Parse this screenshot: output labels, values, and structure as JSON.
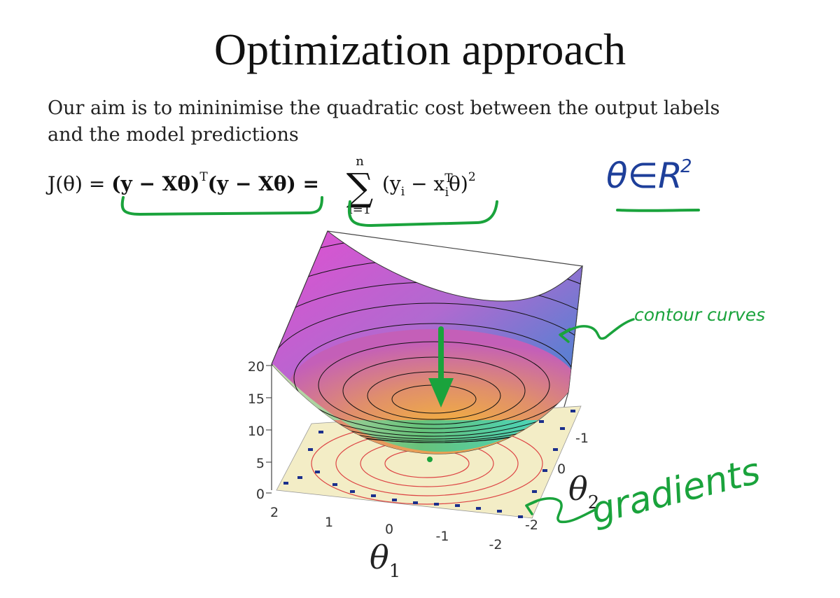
{
  "slide": {
    "title": "Optimization approach",
    "body_lines": [
      "Our aim is to mininimise the quadratic cost between the output labels",
      "and the model predictions"
    ],
    "equation": {
      "lhs": "J(θ) = ",
      "term1": "(y − Xθ)",
      "sup_T": "T",
      "term2": "(y − Xθ) = ",
      "sum_upper": "n",
      "sum_symbol": "∑",
      "sum_lower": "i=1",
      "summand_open": "(y",
      "sub_i": "i",
      "summand_mid": " − x",
      "sup_T2": "T",
      "sub_i2": "i",
      "summand_close": "θ)",
      "sup_2": "2"
    }
  },
  "annotations": {
    "theta_in_R2": "θ∈R",
    "theta_in_R2_sup": "2",
    "contour_curves": "contour curves",
    "gradients": "gradients",
    "accent_color": "#1aa33c",
    "ink_color": "#1e3f9a"
  },
  "plot": {
    "z_ticks": [
      "20",
      "15",
      "10",
      "5",
      "0"
    ],
    "theta1_ticks": [
      "2",
      "1",
      "0",
      "-1",
      "-2"
    ],
    "theta2_ticks": [
      "-1",
      "0",
      "-2"
    ],
    "theta1_label": "θ",
    "theta1_sub": "1",
    "theta2_label": "θ",
    "theta2_sub": "2"
  }
}
